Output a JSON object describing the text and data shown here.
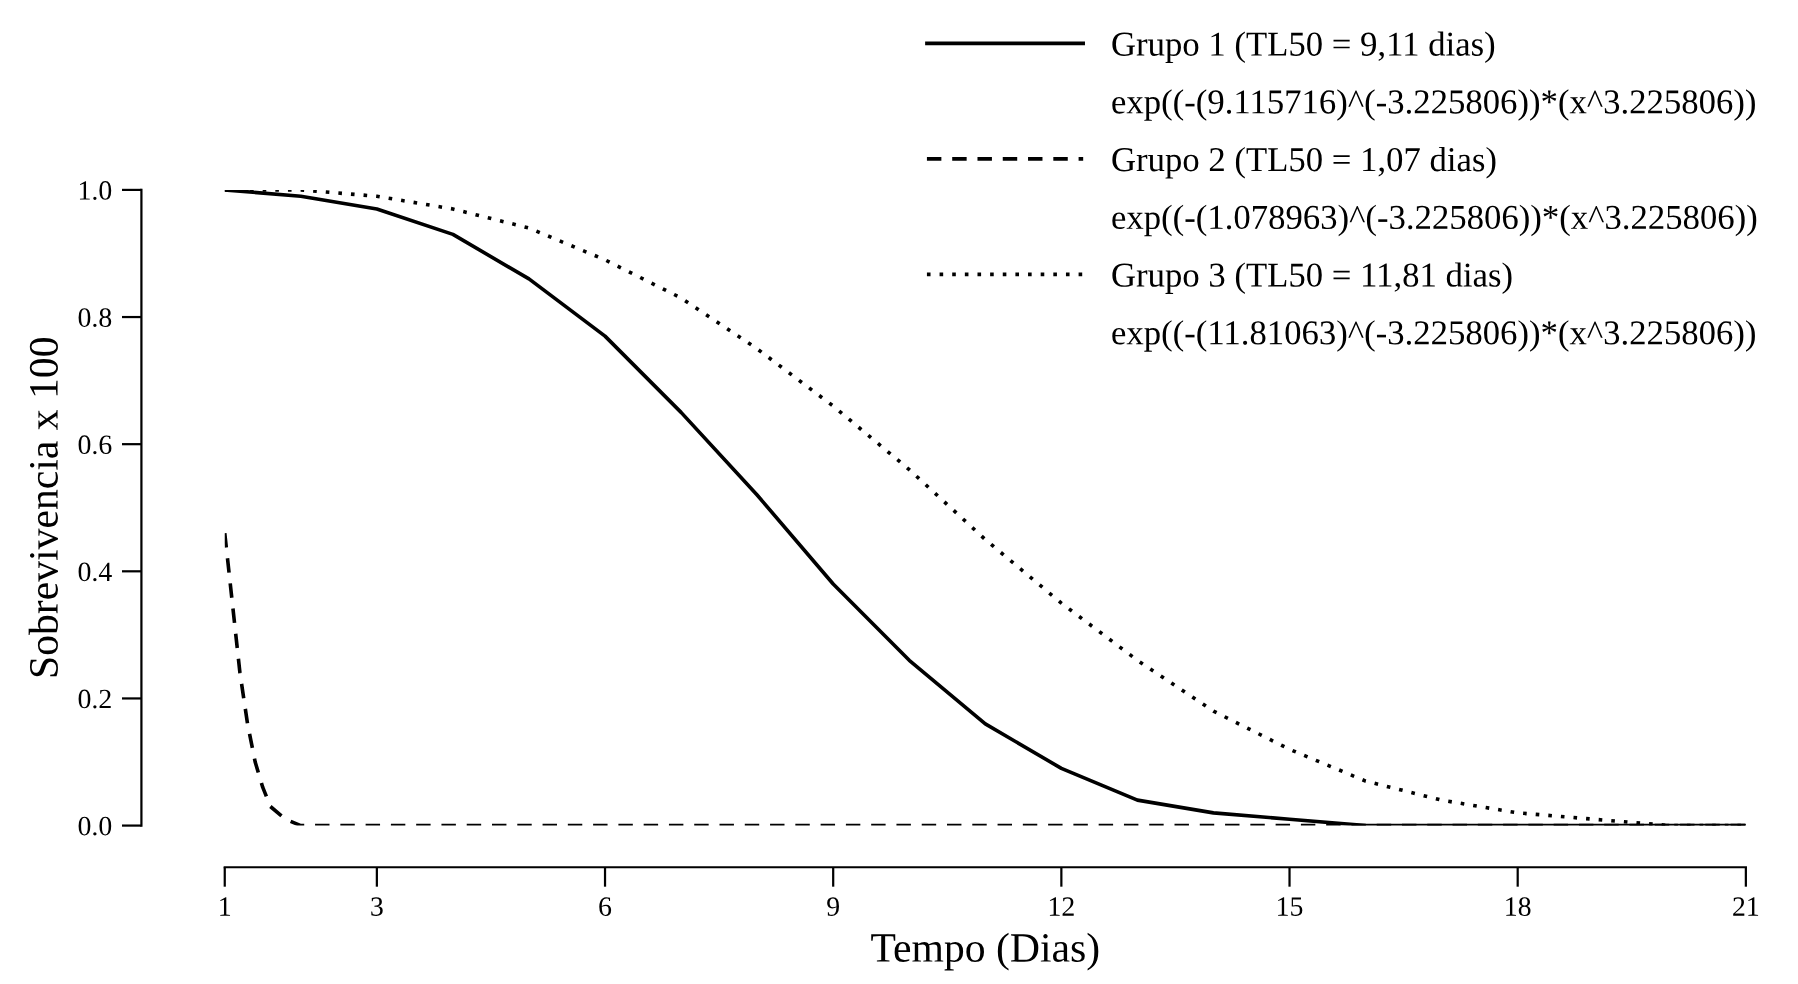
{
  "chart_data": {
    "type": "line",
    "xlabel": "Tempo (Dias)",
    "ylabel": "Sobrevivencia x 100",
    "xlim": [
      1,
      21
    ],
    "ylim": [
      0,
      1
    ],
    "xticks": [
      1,
      3,
      6,
      9,
      12,
      15,
      18,
      21
    ],
    "yticks": [
      {
        "value": 0,
        "label": "0.0"
      },
      {
        "value": 0.2,
        "label": "0.2"
      },
      {
        "value": 0.4,
        "label": "0.4"
      },
      {
        "value": 0.6,
        "label": "0.6"
      },
      {
        "value": 0.8,
        "label": "0.8"
      },
      {
        "value": 1,
        "label": "1.0"
      }
    ],
    "grid": false,
    "legend": "top right",
    "marker": "none",
    "series": [
      {
        "name": "Grupo 1 (TL50 = 9,11 dias)",
        "color": "#000000",
        "line_style": "solid",
        "x": [
          1,
          2,
          3,
          4,
          5,
          6,
          7,
          8,
          9,
          10,
          11,
          12,
          13,
          14,
          15,
          16,
          17,
          18,
          19,
          20,
          21
        ],
        "values": [
          1.0,
          0.99,
          0.97,
          0.93,
          0.86,
          0.77,
          0.65,
          0.52,
          0.38,
          0.26,
          0.16,
          0.09,
          0.04,
          0.02,
          0.01,
          0.0,
          0.0,
          0.0,
          0.0,
          0.0,
          0.0
        ]
      },
      {
        "name": "Grupo 2 (TL50 = 1,07 dias)",
        "color": "#000000",
        "line_style": "dashed",
        "x": [
          1,
          1.1,
          1.2,
          1.3,
          1.4,
          1.5,
          1.6,
          1.8,
          2,
          21
        ],
        "values": [
          0.46,
          0.35,
          0.24,
          0.16,
          0.1,
          0.06,
          0.03,
          0.01,
          0.0,
          0.0
        ]
      },
      {
        "name": "Grupo 3 (TL50 = 11,81 dias)",
        "color": "#000000",
        "line_style": "dotted",
        "x": [
          1,
          2,
          3,
          4,
          5,
          6,
          7,
          8,
          9,
          10,
          11,
          12,
          13,
          14,
          15,
          16,
          17,
          18,
          19,
          20,
          21
        ],
        "values": [
          1.0,
          1.0,
          0.99,
          0.97,
          0.94,
          0.89,
          0.83,
          0.75,
          0.66,
          0.56,
          0.45,
          0.35,
          0.26,
          0.18,
          0.12,
          0.07,
          0.04,
          0.02,
          0.01,
          0.0,
          0.0
        ]
      }
    ],
    "annotations": [
      "exp((-(9.115716)^(-3.225806))*(x^3.225806))",
      "exp((-(1.078963)^(-3.225806))*(x^3.225806))",
      "exp((-(11.81063)^(-3.225806))*(x^3.225806))"
    ]
  }
}
